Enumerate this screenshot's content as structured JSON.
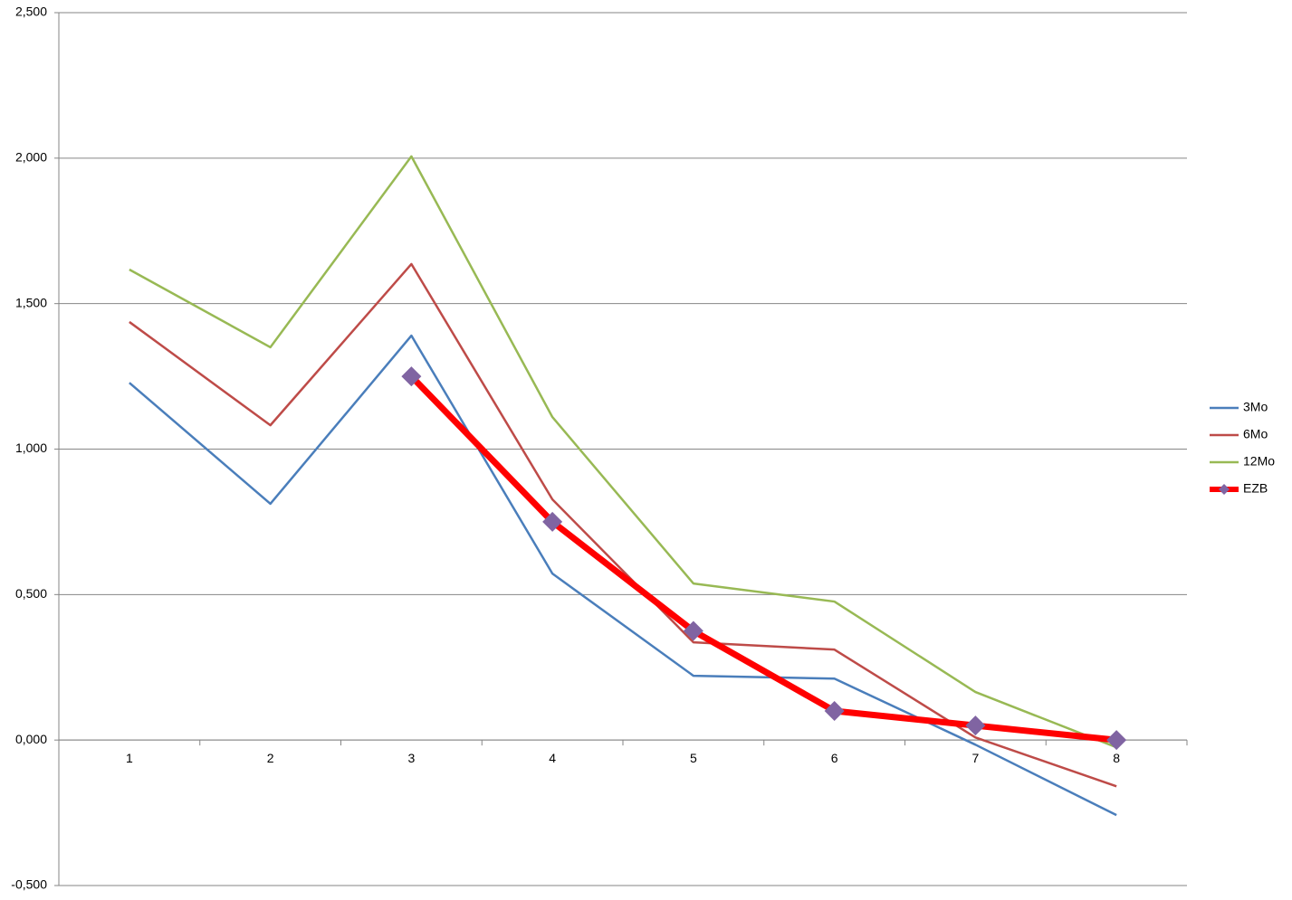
{
  "chart_data": {
    "type": "line",
    "categories": [
      "1",
      "2",
      "3",
      "4",
      "5",
      "6",
      "7",
      "8"
    ],
    "series": [
      {
        "name": "3Mo",
        "color": "#4a7ebb",
        "values": [
          1.228,
          0.812,
          1.39,
          0.572,
          0.221,
          0.211,
          -0.016,
          -0.258
        ]
      },
      {
        "name": "6Mo",
        "color": "#be4b48",
        "values": [
          1.437,
          1.082,
          1.636,
          0.827,
          0.336,
          0.311,
          0.009,
          -0.159
        ]
      },
      {
        "name": "12Mo",
        "color": "#98b954",
        "values": [
          1.617,
          1.35,
          2.006,
          1.11,
          0.538,
          0.476,
          0.165,
          -0.025
        ]
      },
      {
        "name": "EZB",
        "color": "#ff0000",
        "marker_color": "#8064a2",
        "values": [
          null,
          null,
          1.25,
          0.75,
          0.375,
          0.1,
          0.05,
          0.0
        ]
      }
    ],
    "ylim": [
      -0.5,
      2.5
    ],
    "yticks": [
      {
        "value": -0.5,
        "label": "-0,500"
      },
      {
        "value": 0,
        "label": "0,000"
      },
      {
        "value": 0.5,
        "label": "0,500"
      },
      {
        "value": 1,
        "label": "1,000"
      },
      {
        "value": 1.5,
        "label": "1,500"
      },
      {
        "value": 2,
        "label": "2,000"
      },
      {
        "value": 2.5,
        "label": "2,500"
      }
    ],
    "grid": true,
    "legend": "right"
  }
}
